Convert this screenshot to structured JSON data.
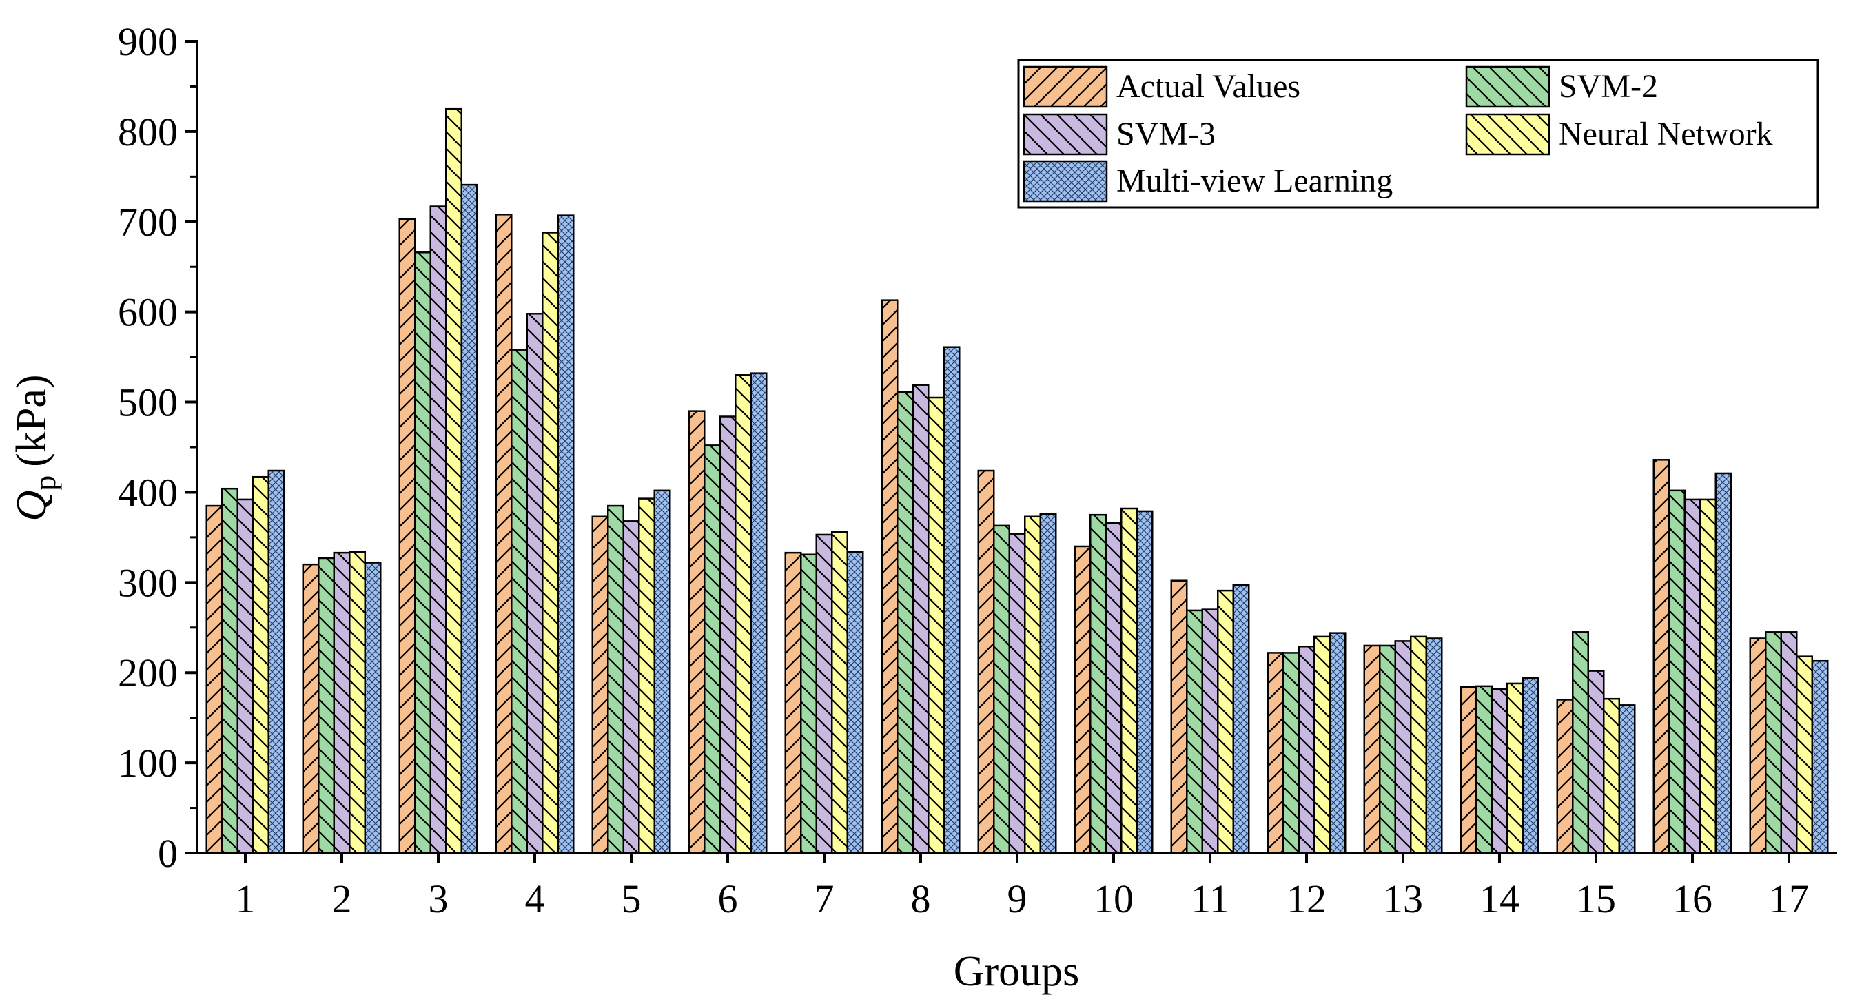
{
  "chart_data": {
    "type": "bar",
    "title": "",
    "xlabel": "Groups",
    "ylabel": {
      "symbol": "Q",
      "subscript": "p",
      "unit": "(kPa)"
    },
    "ylim": [
      0,
      900
    ],
    "yticks": [
      0,
      100,
      200,
      300,
      400,
      500,
      600,
      700,
      800,
      900
    ],
    "categories": [
      "1",
      "2",
      "3",
      "4",
      "5",
      "6",
      "7",
      "8",
      "9",
      "10",
      "11",
      "12",
      "13",
      "14",
      "15",
      "16",
      "17"
    ],
    "series": [
      {
        "name": "Actual Values",
        "color": "#F8C08F",
        "pattern": "diag-right",
        "values": [
          385,
          320,
          703,
          708,
          373,
          490,
          333,
          613,
          424,
          340,
          302,
          222,
          230,
          184,
          170,
          436,
          238
        ]
      },
      {
        "name": "SVM-2",
        "color": "#9FD9A3",
        "pattern": "diag-left",
        "values": [
          404,
          327,
          666,
          558,
          385,
          452,
          331,
          511,
          363,
          375,
          269,
          222,
          230,
          185,
          245,
          402,
          245
        ]
      },
      {
        "name": "SVM-3",
        "color": "#C9B8E0",
        "pattern": "diag-left",
        "values": [
          392,
          333,
          717,
          598,
          368,
          484,
          353,
          519,
          354,
          366,
          270,
          229,
          235,
          182,
          202,
          392,
          245
        ]
      },
      {
        "name": "Neural Network",
        "color": "#FFFF9E",
        "pattern": "diag-left",
        "values": [
          417,
          334,
          825,
          688,
          393,
          530,
          356,
          505,
          373,
          382,
          291,
          240,
          240,
          188,
          171,
          392,
          218
        ]
      },
      {
        "name": "Multi-view Learning",
        "color": "#9FC1F2",
        "pattern": "crosshatch",
        "values": [
          424,
          322,
          741,
          707,
          402,
          532,
          334,
          561,
          376,
          379,
          297,
          244,
          238,
          194,
          164,
          421,
          213
        ]
      }
    ],
    "legend": {
      "placement": "top-right",
      "columns": 2
    }
  }
}
